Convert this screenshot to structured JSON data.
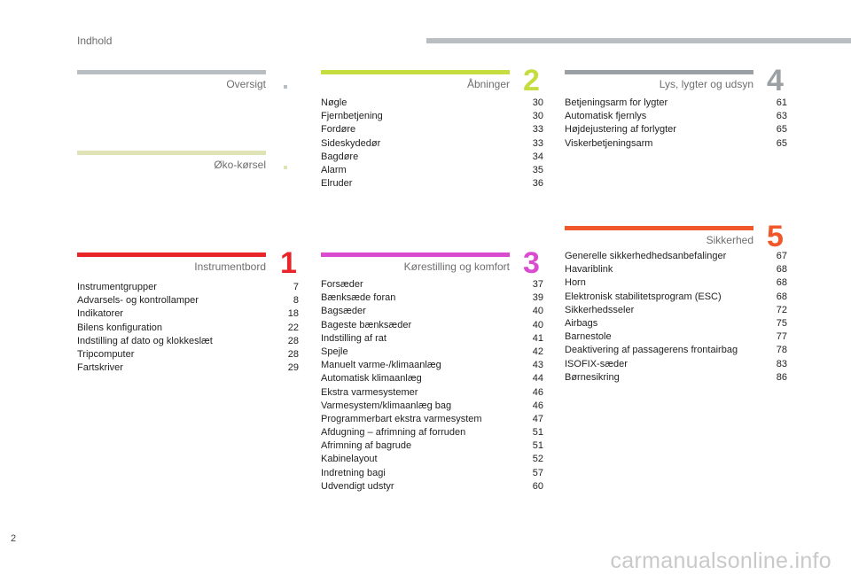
{
  "header": {
    "title": "Indhold"
  },
  "sections": {
    "oversigt": {
      "title": "Oversigt"
    },
    "oko": {
      "title": "Øko-kørsel"
    },
    "instrument": {
      "title": "Instrumentbord",
      "number": "1",
      "items": [
        {
          "label": "Instrumentgrupper",
          "page": "7"
        },
        {
          "label": "Advarsels- og kontrollamper",
          "page": "8"
        },
        {
          "label": "Indikatorer",
          "page": "18"
        },
        {
          "label": "Bilens konfiguration",
          "page": "22"
        },
        {
          "label": "Indstilling af dato og klokkeslæt",
          "page": "28"
        },
        {
          "label": "Tripcomputer",
          "page": "28"
        },
        {
          "label": "Fartskriver",
          "page": "29"
        }
      ]
    },
    "abninger": {
      "title": "Åbninger",
      "number": "2",
      "items": [
        {
          "label": "Nøgle",
          "page": "30"
        },
        {
          "label": "Fjernbetjening",
          "page": "30"
        },
        {
          "label": "Fordøre",
          "page": "33"
        },
        {
          "label": "Sideskydedør",
          "page": "33"
        },
        {
          "label": "Bagdøre",
          "page": "34"
        },
        {
          "label": "Alarm",
          "page": "35"
        },
        {
          "label": "Elruder",
          "page": "36"
        }
      ]
    },
    "korestilling": {
      "title": "Kørestilling og komfort",
      "number": "3",
      "items": [
        {
          "label": "Forsæder",
          "page": "37"
        },
        {
          "label": "Bænksæde foran",
          "page": "39"
        },
        {
          "label": "Bagsæder",
          "page": "40"
        },
        {
          "label": "Bageste bænksæder",
          "page": "40"
        },
        {
          "label": "Indstilling af rat",
          "page": "41"
        },
        {
          "label": "Spejle",
          "page": "42"
        },
        {
          "label": "Manuelt varme-/klimaanlæg",
          "page": "43"
        },
        {
          "label": "Automatisk klimaanlæg",
          "page": "44"
        },
        {
          "label": "Ekstra varmesystemer",
          "page": "46"
        },
        {
          "label": "Varmesystem/klimaanlæg bag",
          "page": "46"
        },
        {
          "label": "Programmerbart ekstra varmesystem",
          "page": "47"
        },
        {
          "label": "Afdugning – afrimning af forruden",
          "page": "51"
        },
        {
          "label": "Afrimning af bagrude",
          "page": "51"
        },
        {
          "label": "Kabinelayout",
          "page": "52"
        },
        {
          "label": "Indretning bagi",
          "page": "57"
        },
        {
          "label": "Udvendigt udstyr",
          "page": "60"
        }
      ]
    },
    "lys": {
      "title": "Lys, lygter og udsyn",
      "number": "4",
      "items": [
        {
          "label": "Betjeningsarm for lygter",
          "page": "61"
        },
        {
          "label": "Automatisk fjernlys",
          "page": "63"
        },
        {
          "label": "Højdejustering af forlygter",
          "page": "65"
        },
        {
          "label": "Viskerbetjeningsarm",
          "page": "65"
        }
      ]
    },
    "sikkerhed": {
      "title": "Sikkerhed",
      "number": "5",
      "items": [
        {
          "label": "Generelle sikkerhedhedsanbefalinger",
          "page": "67"
        },
        {
          "label": "Havariblink",
          "page": "68"
        },
        {
          "label": "Horn",
          "page": "68"
        },
        {
          "label": "Elektronisk stabilitetsprogram (ESC)",
          "page": "68"
        },
        {
          "label": "Sikkerhedsseler",
          "page": "72"
        },
        {
          "label": "Airbags",
          "page": "75"
        },
        {
          "label": "Barnestole",
          "page": "77"
        },
        {
          "label": "Deaktivering af passagerens frontairbag",
          "page": "78"
        },
        {
          "label": "ISOFIX-sæder",
          "page": "83"
        },
        {
          "label": "Børnesikring",
          "page": "86"
        }
      ]
    }
  },
  "footer": {
    "page_number": "2",
    "watermark": "carmanualsonline.info"
  },
  "colors": {
    "oversigt": "#b8bec1",
    "oko": "#dfe3b5",
    "instrument": "#e8262a",
    "abninger": "#c6dd3f",
    "korestilling": "#d94bcf",
    "lys": "#9aa0a3",
    "sikkerhed": "#f0582a"
  }
}
